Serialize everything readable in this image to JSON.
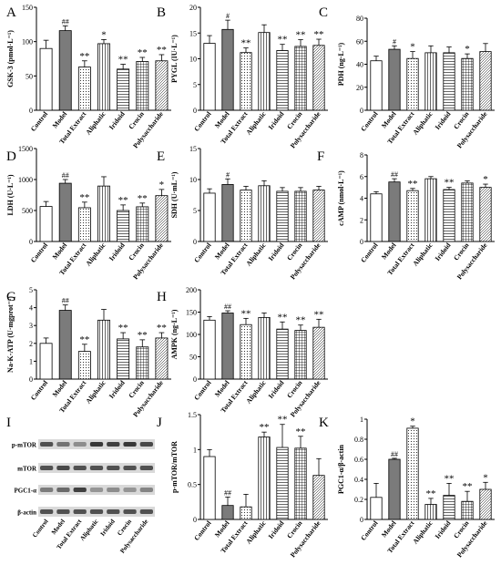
{
  "categories": [
    "Control",
    "Model",
    "Total Extract",
    "Aliphatic",
    "Iridoid",
    "Crocin",
    "Polysaccharide"
  ],
  "blot": {
    "panel_letter": "I",
    "bands": [
      "p-mTOR",
      "mTOR",
      "PGC1-α",
      "β-actin"
    ],
    "lanes": [
      "Control",
      "Model",
      "Total Extract",
      "Aliphatic",
      "Iridoid",
      "Crocin",
      "Polysaccharide"
    ]
  },
  "chart_data": [
    {
      "panel": "A",
      "type": "bar",
      "ylabel": "GSK-3 (pmol·L⁻¹)",
      "ylim": [
        0,
        150
      ],
      "yticks": [
        0,
        50,
        100,
        150
      ],
      "categories": [
        "Control",
        "Model",
        "Total Extract",
        "Aliphatic",
        "Iridoid",
        "Crocin",
        "Polysaccharide"
      ],
      "values": [
        90,
        116,
        63,
        97,
        60,
        71,
        72
      ],
      "errors": [
        12,
        7,
        9,
        6,
        7,
        6,
        9
      ],
      "annotations": [
        "",
        "##",
        "**",
        "*",
        "**",
        "**",
        "**"
      ]
    },
    {
      "panel": "B",
      "type": "bar",
      "ylabel": "PYGL (IU·L⁻¹)",
      "ylim": [
        0,
        20
      ],
      "yticks": [
        0,
        5,
        10,
        15,
        20
      ],
      "categories": [
        "Control",
        "Model",
        "Total Extract",
        "Aliphatic",
        "Iridoid",
        "Crocin",
        "Polysaccharide"
      ],
      "values": [
        13,
        15.7,
        11.2,
        15.1,
        11.6,
        12.4,
        12.6
      ],
      "errors": [
        1.5,
        1.8,
        0.9,
        1.5,
        1.2,
        1.3,
        1.2
      ],
      "annotations": [
        "",
        "#",
        "**",
        "",
        "**",
        "**",
        "**"
      ]
    },
    {
      "panel": "C",
      "type": "bar",
      "ylabel": "PDH (ng·L⁻¹)",
      "ylim": [
        0,
        80
      ],
      "yticks": [
        0,
        20,
        40,
        60,
        80
      ],
      "categories": [
        "Control",
        "Model",
        "Total Extract",
        "Aliphatic",
        "Iridoid",
        "Crocin",
        "Polysaccharide"
      ],
      "values": [
        43,
        53,
        45,
        50,
        50,
        45,
        51
      ],
      "errors": [
        4,
        3,
        6,
        6,
        5,
        4,
        7
      ],
      "annotations": [
        "",
        "#",
        "*",
        "",
        "",
        "*",
        ""
      ]
    },
    {
      "panel": "D",
      "type": "bar",
      "ylabel": "LDH (U·L⁻¹)",
      "ylim": [
        0,
        1500
      ],
      "yticks": [
        0,
        500,
        1000,
        1500
      ],
      "categories": [
        "Control",
        "Model",
        "Total Extract",
        "Aliphatic",
        "Iridoid",
        "Crocin",
        "Polysaccharide"
      ],
      "values": [
        565,
        940,
        545,
        895,
        500,
        560,
        740
      ],
      "errors": [
        80,
        60,
        90,
        150,
        90,
        60,
        100
      ],
      "annotations": [
        "",
        "##",
        "**",
        "",
        "**",
        "**",
        "*"
      ]
    },
    {
      "panel": "E",
      "type": "bar",
      "ylabel": "SDH (U·mL⁻¹)",
      "ylim": [
        0,
        15
      ],
      "yticks": [
        0,
        5,
        10,
        15
      ],
      "categories": [
        "Control",
        "Model",
        "Total Extract",
        "Aliphatic",
        "Iridoid",
        "Crocin",
        "Polysaccharide"
      ],
      "values": [
        7.8,
        9.2,
        8.3,
        9,
        8.1,
        8.1,
        8.3
      ],
      "errors": [
        0.7,
        0.9,
        0.6,
        0.8,
        0.6,
        0.6,
        0.6
      ],
      "annotations": [
        "",
        "#",
        "",
        "",
        "",
        "",
        ""
      ]
    },
    {
      "panel": "F",
      "type": "bar",
      "ylabel": "cAMP (nmol·L⁻¹)",
      "ylim": [
        0,
        8
      ],
      "yticks": [
        0,
        2,
        4,
        6,
        8
      ],
      "categories": [
        "Control",
        "Model",
        "Total Extract",
        "Aliphatic",
        "Iridoid",
        "Crocin",
        "Polysaccharide"
      ],
      "values": [
        4.4,
        5.5,
        4.7,
        5.8,
        4.8,
        5.4,
        5
      ],
      "errors": [
        0.2,
        0.3,
        0.2,
        0.2,
        0.2,
        0.2,
        0.3
      ],
      "annotations": [
        "",
        "##",
        "**",
        "",
        "**",
        "",
        "*"
      ]
    },
    {
      "panel": "G",
      "type": "bar",
      "ylabel": "Na-K-ATP (U·mgprot⁻¹)",
      "ylim": [
        0,
        5
      ],
      "yticks": [
        0,
        1,
        2,
        3,
        4,
        5
      ],
      "categories": [
        "Control",
        "Model",
        "Total Extract",
        "Aliphatic",
        "Iridoid",
        "Crocin",
        "Polysaccharide"
      ],
      "values": [
        2,
        3.85,
        1.55,
        3.3,
        2.25,
        1.8,
        2.3
      ],
      "errors": [
        0.3,
        0.3,
        0.4,
        0.6,
        0.35,
        0.4,
        0.3
      ],
      "annotations": [
        "",
        "##",
        "**",
        "",
        "**",
        "**",
        "**"
      ]
    },
    {
      "panel": "H",
      "type": "bar",
      "ylabel": "AMPK (ng·L⁻¹)",
      "ylim": [
        0,
        200
      ],
      "yticks": [
        0,
        50,
        100,
        150,
        200
      ],
      "categories": [
        "Control",
        "Model",
        "Total Extract",
        "Aliphatic",
        "Iridoid",
        "Crocin",
        "Polysaccharide"
      ],
      "values": [
        132,
        148,
        122,
        138,
        112,
        109,
        116
      ],
      "errors": [
        8,
        5,
        14,
        10,
        16,
        12,
        18
      ],
      "annotations": [
        "",
        "##",
        "**",
        "",
        "**",
        "**",
        "**"
      ]
    },
    {
      "panel": "J",
      "type": "bar",
      "ylabel": "p-mTOR/mTOR",
      "ylim": [
        0,
        1.5
      ],
      "yticks": [
        0,
        0.5,
        1,
        1.5
      ],
      "categories": [
        "Control",
        "Model",
        "Total Extract",
        "Aliphatic",
        "Iridoid",
        "Crocin",
        "Polysaccharide"
      ],
      "values": [
        0.9,
        0.2,
        0.18,
        1.18,
        1.03,
        1.02,
        0.63
      ],
      "errors": [
        0.1,
        0.12,
        0.18,
        0.07,
        0.33,
        0.17,
        0.24
      ],
      "annotations": [
        "",
        "##",
        "",
        "**",
        "**",
        "**",
        ""
      ]
    },
    {
      "panel": "K",
      "type": "bar",
      "ylabel": "PGC1-α/β-actin",
      "ylim": [
        0,
        1.0
      ],
      "yticks": [
        0,
        0.2,
        0.4,
        0.6,
        0.8,
        1.0
      ],
      "categories": [
        "Control",
        "Model",
        "Total Extract",
        "Aliphatic",
        "Iridoid",
        "Crocin",
        "Polysaccharide"
      ],
      "values": [
        0.22,
        0.6,
        0.91,
        0.15,
        0.24,
        0.18,
        0.3
      ],
      "errors": [
        0.14,
        0.01,
        0.02,
        0.06,
        0.12,
        0.1,
        0.07
      ],
      "annotations": [
        "",
        "##",
        "*",
        "**",
        "**",
        "**",
        "*"
      ]
    }
  ]
}
